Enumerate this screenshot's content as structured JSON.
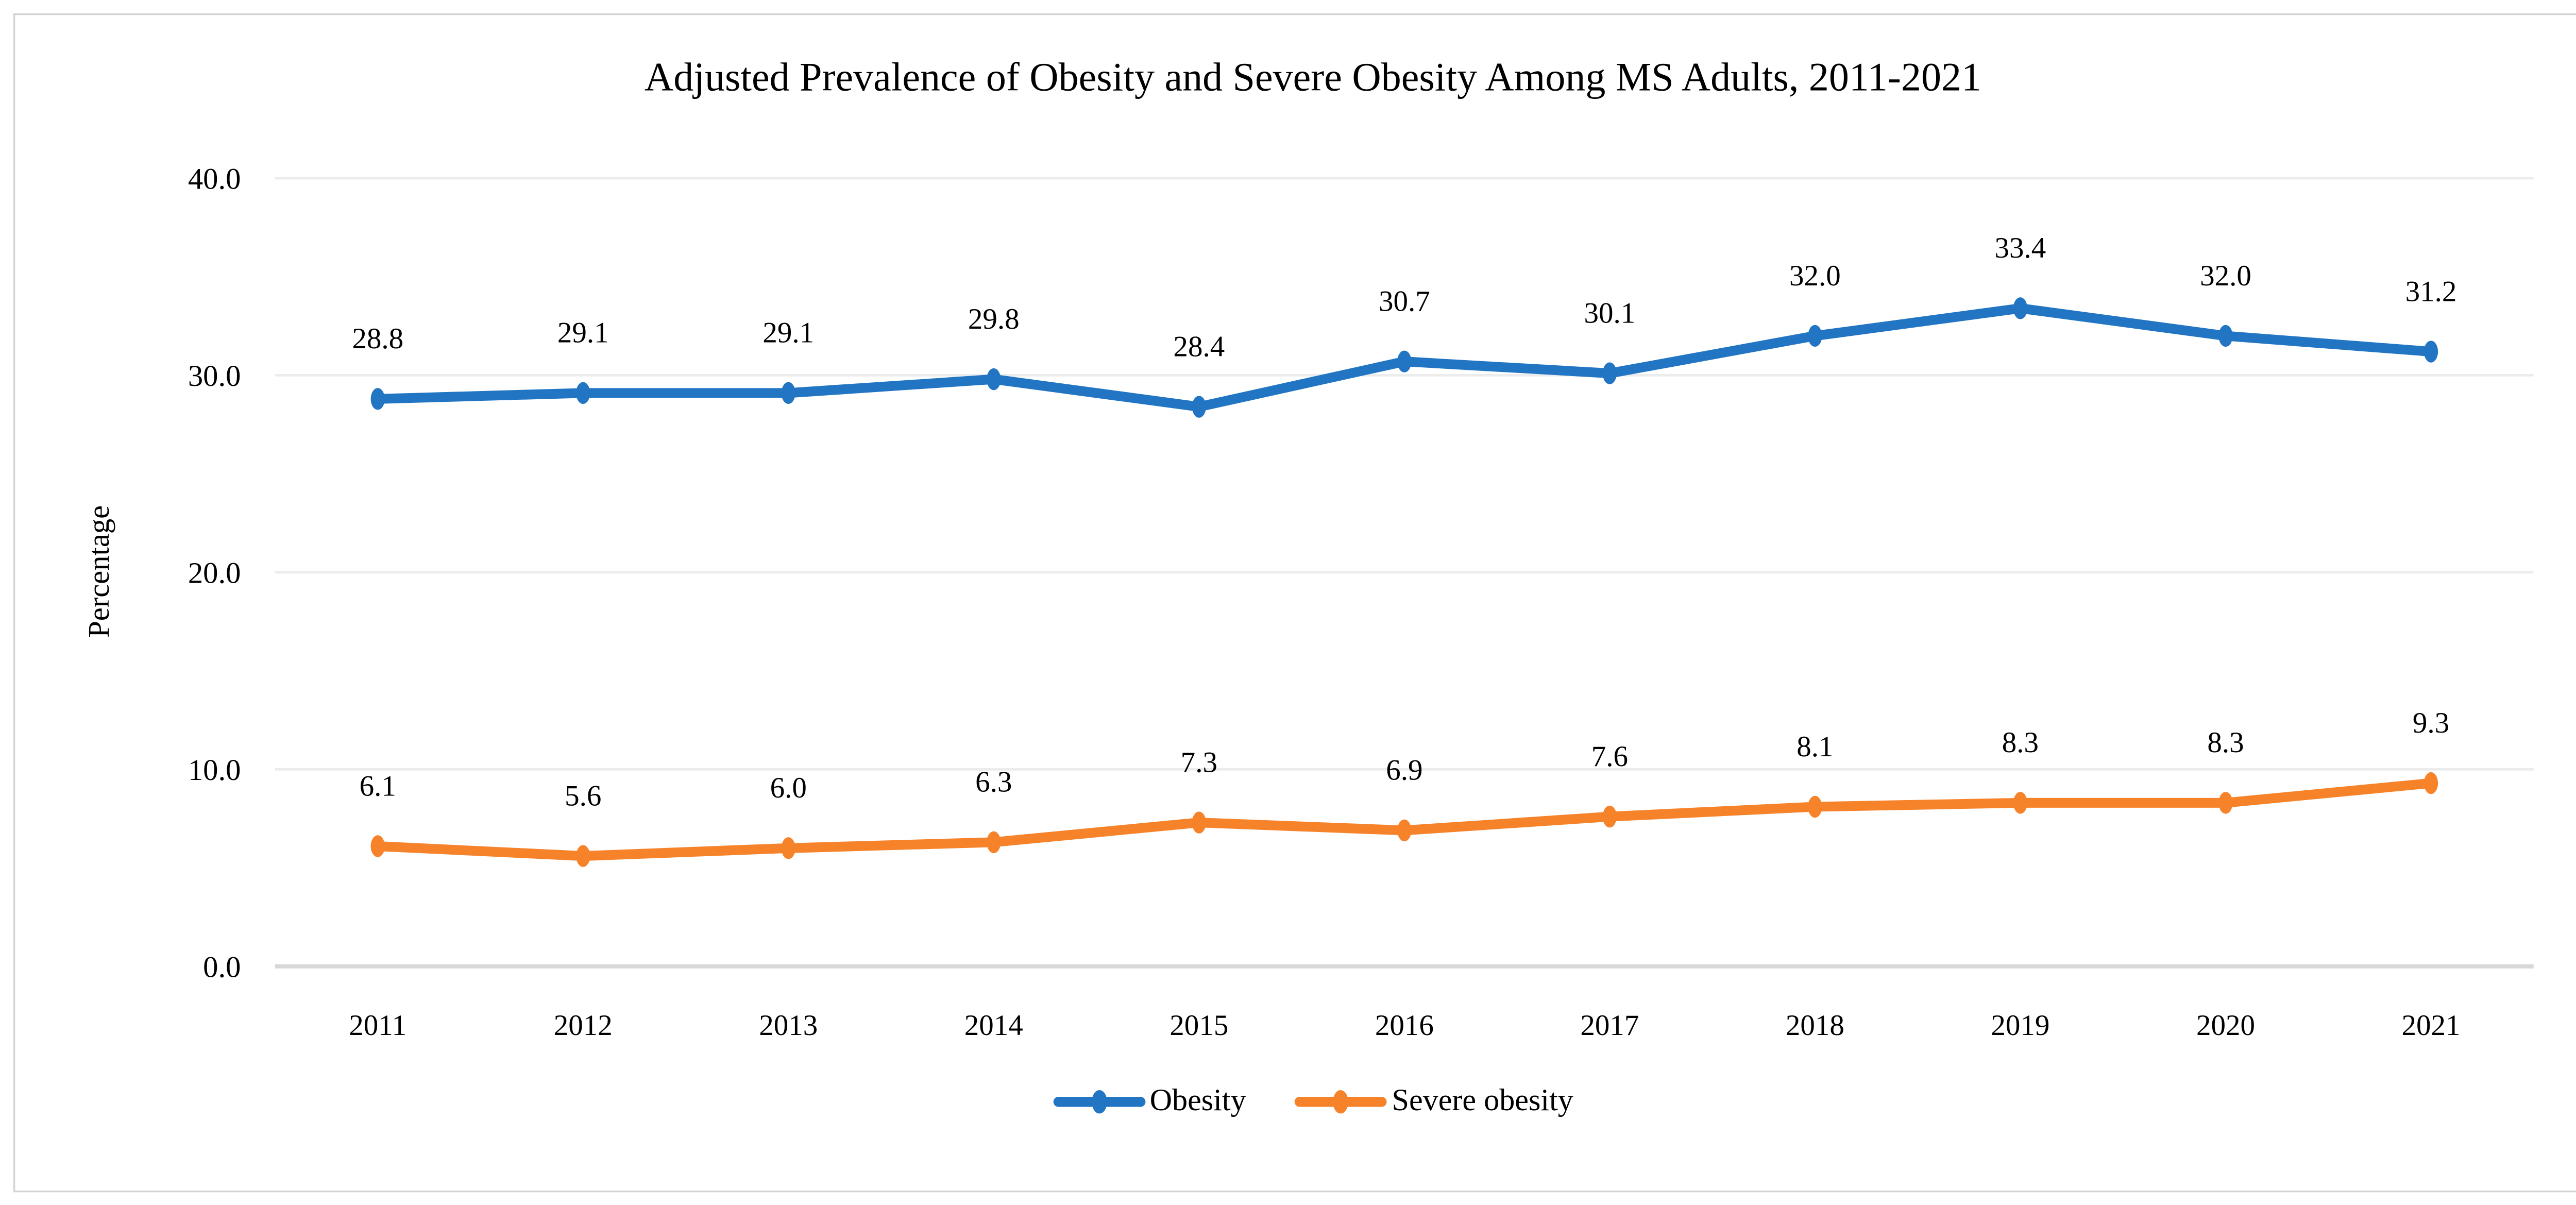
{
  "figure": {
    "background": "#ffffff",
    "border_color": "#d2d2d2"
  },
  "chart_data": {
    "type": "line",
    "title": "Adjusted Prevalence of Obesity and Severe Obesity Among MS Adults, 2011-2021",
    "xlabel": "",
    "ylabel": "Percentage",
    "categories": [
      "2011",
      "2012",
      "2013",
      "2014",
      "2015",
      "2016",
      "2017",
      "2018",
      "2019",
      "2020",
      "2021"
    ],
    "series": [
      {
        "name": "Obesity",
        "color": "#2275c3",
        "values": [
          28.8,
          29.1,
          29.1,
          29.8,
          28.4,
          30.7,
          30.1,
          32.0,
          33.4,
          32.0,
          31.2
        ]
      },
      {
        "name": "Severe obesity",
        "color": "#f6822a",
        "values": [
          6.1,
          5.6,
          6.0,
          6.3,
          7.3,
          6.9,
          7.6,
          8.1,
          8.3,
          8.3,
          9.3
        ]
      }
    ],
    "ylim": [
      0,
      40
    ],
    "y_ticks": [
      0,
      10,
      20,
      30,
      40
    ],
    "y_tick_labels": [
      "0.0",
      "10.0",
      "20.0",
      "30.0",
      "40.0"
    ],
    "grid": "horizontal",
    "gridline_color": "#ececec",
    "baseline_color": "#d8d8d8",
    "data_labels": "above",
    "label_decimals": 1,
    "legend_position": "bottom"
  }
}
